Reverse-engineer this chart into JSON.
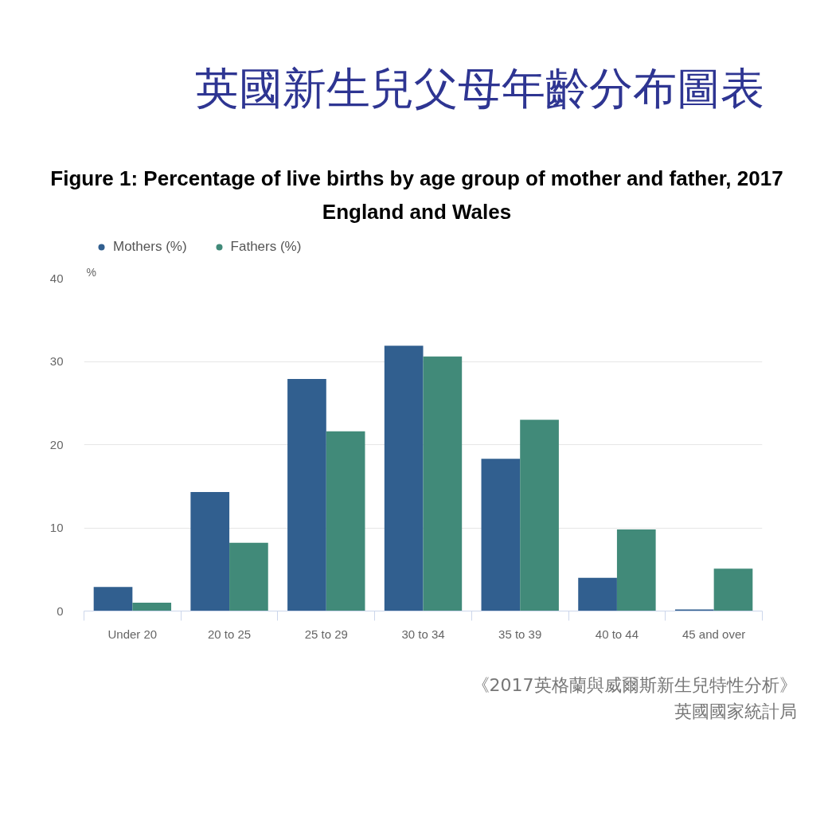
{
  "chart_data": {
    "type": "bar",
    "title": "英國新生兒父母年齡分布圖表",
    "subtitle": "Figure 1: Percentage of live births by age group of mother and father, 2017\nEngland and Wales",
    "ylabel": "%",
    "categories": [
      "Under 20",
      "20 to 25",
      "25 to 29",
      "30 to 34",
      "35 to 39",
      "40 to 44",
      "45 and over"
    ],
    "series": [
      {
        "name": "Mothers (%)",
        "color": "#315f8f",
        "values": [
          2.9,
          14.3,
          27.9,
          31.9,
          18.3,
          4.0,
          0.2
        ]
      },
      {
        "name": "Fathers (%)",
        "color": "#418a79",
        "values": [
          1.0,
          8.2,
          21.6,
          30.6,
          23.0,
          9.8,
          5.1
        ]
      }
    ],
    "ylim": [
      0,
      40
    ],
    "yticks": [
      0,
      10,
      20,
      30,
      40
    ],
    "grid": "y",
    "legend": "top left",
    "annotations": [
      "《2017英格蘭與威爾斯新生兒特性分析》",
      "英國國家統計局"
    ]
  }
}
